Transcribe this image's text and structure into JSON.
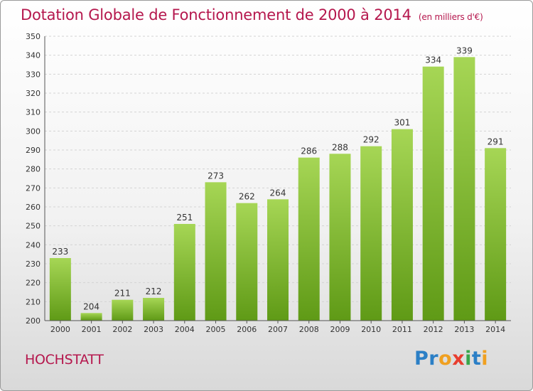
{
  "header": {
    "title": "Dotation Globale de Fonctionnement de 2000 à 2014",
    "subtitle": "(en milliers d'€)"
  },
  "footer": {
    "commune": "HOCHSTATT",
    "logo_text": "Proxiti"
  },
  "colors": {
    "title": "#b5174d",
    "bar_light": "#a6d655",
    "bar_dark": "#5f9a16",
    "logo_blue": "#2b7fc6",
    "logo_orange": "#f0a020",
    "logo_red": "#e83d2e",
    "logo_green": "#39a64a"
  },
  "chart_data": {
    "type": "bar",
    "categories": [
      "2000",
      "2001",
      "2002",
      "2003",
      "2004",
      "2005",
      "2006",
      "2007",
      "2008",
      "2009",
      "2010",
      "2011",
      "2012",
      "2013",
      "2014"
    ],
    "values": [
      233,
      204,
      211,
      212,
      251,
      273,
      262,
      264,
      286,
      288,
      292,
      301,
      334,
      339,
      291
    ],
    "ylim": [
      200,
      350
    ],
    "yticks": [
      200,
      210,
      220,
      230,
      240,
      250,
      260,
      270,
      280,
      290,
      300,
      310,
      320,
      330,
      340,
      350
    ],
    "grid": "horizontal",
    "data_labels": true
  }
}
